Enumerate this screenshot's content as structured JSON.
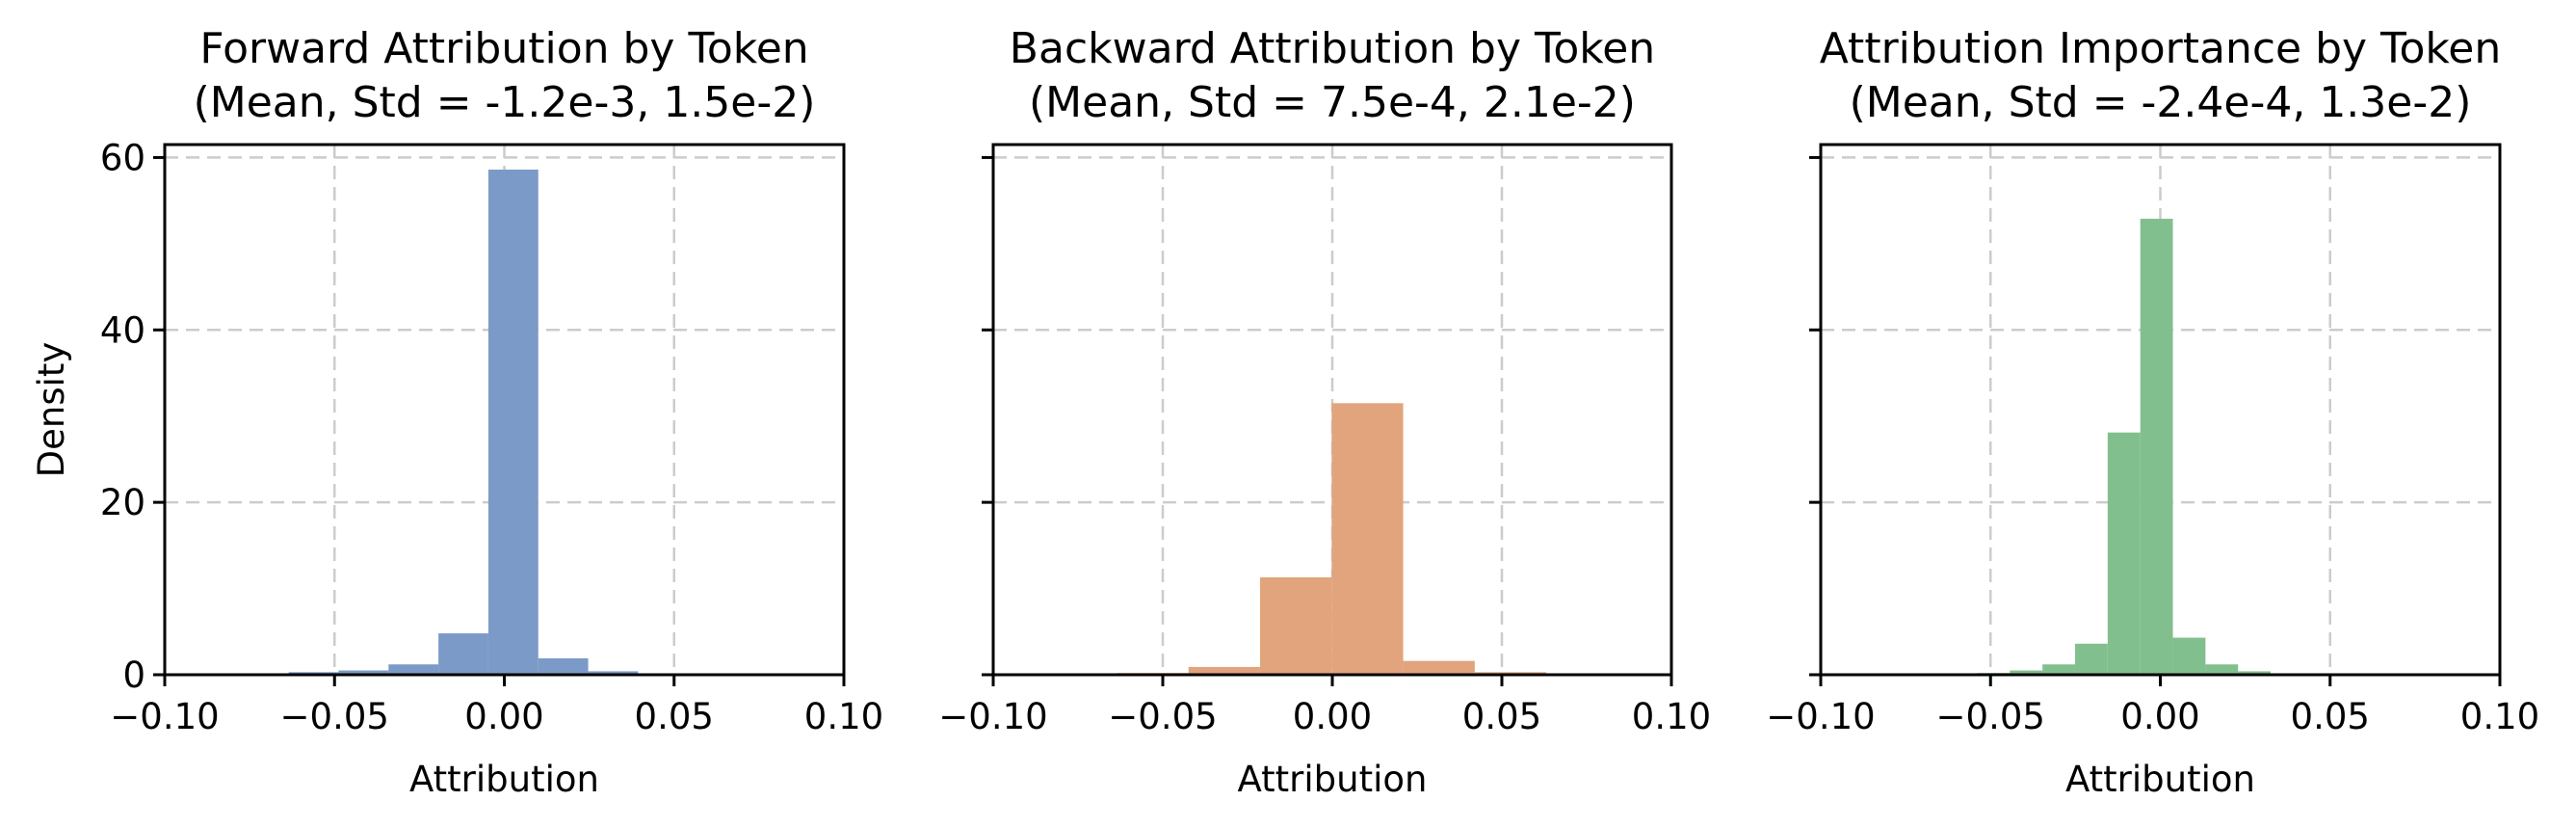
{
  "chart_data": [
    {
      "type": "bar",
      "panel": "forward",
      "title_line1": "Forward Attribution by Token",
      "title_line2": "(Mean, Std = -1.2e-3, 1.5e-2)",
      "xlabel": "Attribution",
      "ylabel": "Density",
      "xlim": [
        -0.1,
        0.1
      ],
      "ylim": [
        0,
        61.5
      ],
      "xticks": [
        -0.1,
        -0.05,
        0.0,
        0.05,
        0.1
      ],
      "xtick_labels": [
        "−0.10",
        "−0.05",
        "0.00",
        "0.05",
        "0.10"
      ],
      "yticks": [
        0,
        20,
        40,
        60
      ],
      "ytick_labels": [
        "0",
        "20",
        "40",
        "60"
      ],
      "grid": true,
      "color": "#7b9ac8",
      "bins": [
        {
          "x0": -0.0635,
          "x1": -0.0488,
          "density": 0.3
        },
        {
          "x0": -0.0488,
          "x1": -0.0341,
          "density": 0.5
        },
        {
          "x0": -0.0341,
          "x1": -0.0194,
          "density": 1.2
        },
        {
          "x0": -0.0194,
          "x1": -0.0047,
          "density": 4.8
        },
        {
          "x0": -0.0047,
          "x1": 0.01,
          "density": 58.6
        },
        {
          "x0": 0.01,
          "x1": 0.0247,
          "density": 1.9
        },
        {
          "x0": 0.0247,
          "x1": 0.0394,
          "density": 0.4
        }
      ]
    },
    {
      "type": "bar",
      "panel": "backward",
      "title_line1": "Backward Attribution by Token",
      "title_line2": "(Mean, Std = 7.5e-4, 2.1e-2)",
      "xlabel": "Attribution",
      "ylabel": "",
      "xlim": [
        -0.1,
        0.1
      ],
      "ylim": [
        0,
        61.5
      ],
      "xticks": [
        -0.1,
        -0.05,
        0.0,
        0.05,
        0.1
      ],
      "xtick_labels": [
        "−0.10",
        "−0.05",
        "0.00",
        "0.05",
        "0.10"
      ],
      "yticks": [
        0,
        20,
        40,
        60
      ],
      "ytick_labels": [],
      "grid": true,
      "color": "#e2a47c",
      "bins": [
        {
          "x0": -0.0635,
          "x1": -0.0424,
          "density": 0.2
        },
        {
          "x0": -0.0424,
          "x1": -0.0213,
          "density": 0.9
        },
        {
          "x0": -0.0213,
          "x1": -0.0002,
          "density": 11.3
        },
        {
          "x0": -0.0002,
          "x1": 0.0209,
          "density": 31.5
        },
        {
          "x0": 0.0209,
          "x1": 0.042,
          "density": 1.6
        },
        {
          "x0": 0.042,
          "x1": 0.0631,
          "density": 0.3
        }
      ]
    },
    {
      "type": "bar",
      "panel": "importance",
      "title_line1": "Attribution Importance by Token",
      "title_line2": "(Mean, Std = -2.4e-4, 1.3e-2)",
      "xlabel": "Attribution",
      "ylabel": "",
      "xlim": [
        -0.1,
        0.1
      ],
      "ylim": [
        0,
        61.5
      ],
      "xticks": [
        -0.1,
        -0.05,
        0.0,
        0.05,
        0.1
      ],
      "xtick_labels": [
        "−0.10",
        "−0.05",
        "0.00",
        "0.05",
        "0.10"
      ],
      "yticks": [
        0,
        20,
        40,
        60
      ],
      "ytick_labels": [],
      "grid": true,
      "color": "#82bf8e",
      "bins": [
        {
          "x0": -0.0635,
          "x1": -0.0539,
          "density": 0.1
        },
        {
          "x0": -0.0539,
          "x1": -0.0443,
          "density": 0.2
        },
        {
          "x0": -0.0443,
          "x1": -0.0347,
          "density": 0.5
        },
        {
          "x0": -0.0347,
          "x1": -0.0251,
          "density": 1.2
        },
        {
          "x0": -0.0251,
          "x1": -0.0155,
          "density": 3.6
        },
        {
          "x0": -0.0155,
          "x1": -0.0059,
          "density": 28.1
        },
        {
          "x0": -0.0059,
          "x1": 0.0037,
          "density": 52.9
        },
        {
          "x0": 0.0037,
          "x1": 0.0133,
          "density": 4.3
        },
        {
          "x0": 0.0133,
          "x1": 0.0229,
          "density": 1.2
        },
        {
          "x0": 0.0229,
          "x1": 0.0325,
          "density": 0.4
        },
        {
          "x0": 0.0325,
          "x1": 0.0421,
          "density": 0.1
        }
      ]
    }
  ]
}
